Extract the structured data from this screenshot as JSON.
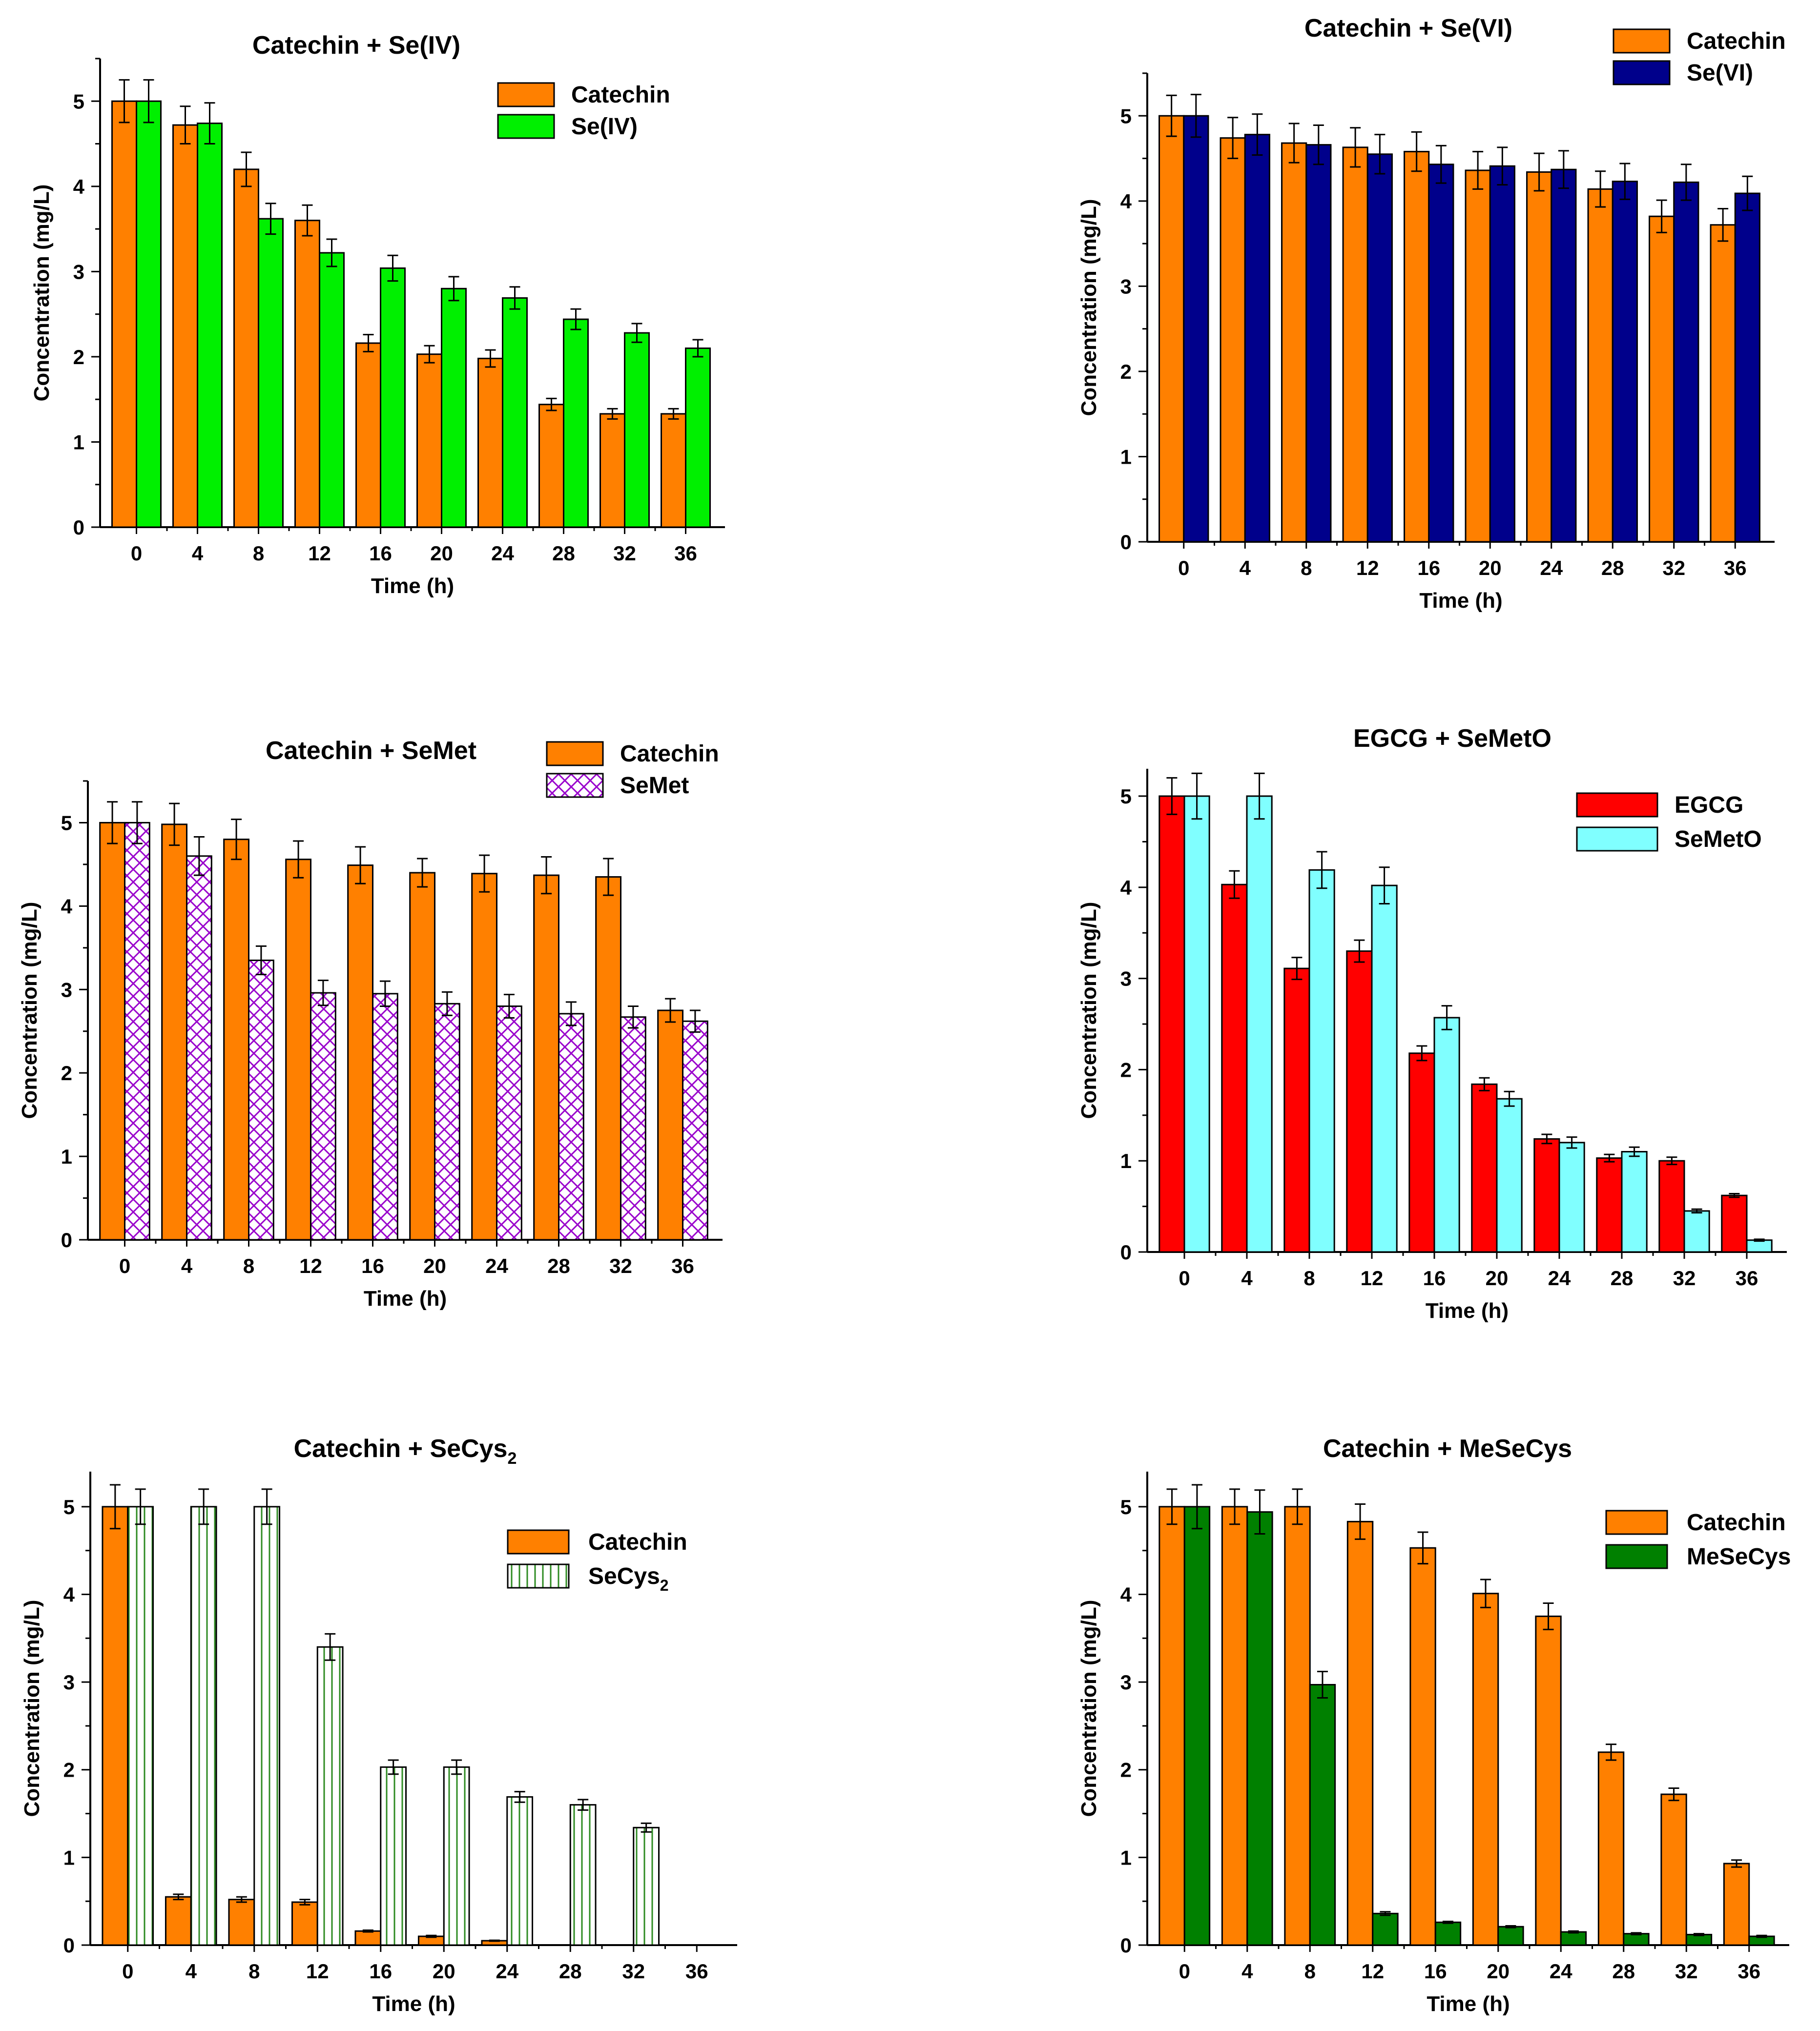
{
  "chart_data": [
    {
      "type": "bar",
      "title": "Catechin + Se(IV)",
      "xlabel": "Time (h)",
      "ylabel": "Concentration (mg/L)",
      "ylim": [
        0,
        5.5
      ],
      "yticks": [
        "0",
        "1",
        "2",
        "3",
        "4",
        "5"
      ],
      "categories": [
        "0",
        "4",
        "8",
        "12",
        "16",
        "20",
        "24",
        "28",
        "32",
        "36"
      ],
      "legend_position": "top-right",
      "series": [
        {
          "name": "Catechin",
          "color": "#FF8000",
          "pattern": "solid",
          "values": [
            5.0,
            4.72,
            4.2,
            3.6,
            2.16,
            2.03,
            1.98,
            1.44,
            1.33,
            1.33
          ],
          "errors": [
            0.25,
            0.22,
            0.2,
            0.18,
            0.1,
            0.1,
            0.1,
            0.07,
            0.06,
            0.06
          ]
        },
        {
          "name": "Se(IV)",
          "color": "#00F000",
          "pattern": "solid",
          "values": [
            5.0,
            4.74,
            3.62,
            3.22,
            3.04,
            2.8,
            2.69,
            2.44,
            2.28,
            2.1
          ],
          "errors": [
            0.25,
            0.24,
            0.18,
            0.16,
            0.15,
            0.14,
            0.13,
            0.12,
            0.11,
            0.1
          ]
        }
      ]
    },
    {
      "type": "bar",
      "title": "Catechin + Se(VI)",
      "xlabel": "Time (h)",
      "ylabel": "Concentration (mg/L)",
      "ylim": [
        0,
        5.5
      ],
      "yticks": [
        "0",
        "1",
        "2",
        "3",
        "4",
        "5"
      ],
      "categories": [
        "0",
        "4",
        "8",
        "12",
        "16",
        "20",
        "24",
        "28",
        "32",
        "36"
      ],
      "legend_position": "top-right",
      "series": [
        {
          "name": "Catechin",
          "color": "#FF8000",
          "pattern": "solid",
          "values": [
            5.0,
            4.74,
            4.68,
            4.63,
            4.58,
            4.36,
            4.34,
            4.14,
            3.82,
            3.72
          ],
          "errors": [
            0.24,
            0.24,
            0.23,
            0.23,
            0.23,
            0.22,
            0.22,
            0.21,
            0.19,
            0.19
          ]
        },
        {
          "name": "Se(VI)",
          "color": "#00008B",
          "pattern": "solid",
          "values": [
            5.0,
            4.78,
            4.66,
            4.55,
            4.43,
            4.41,
            4.37,
            4.23,
            4.22,
            4.09
          ],
          "errors": [
            0.25,
            0.24,
            0.23,
            0.23,
            0.22,
            0.22,
            0.22,
            0.21,
            0.21,
            0.2
          ]
        }
      ]
    },
    {
      "type": "bar",
      "title": "Catechin + SeMet",
      "xlabel": "Time (h)",
      "ylabel": "Concentration (mg/L)",
      "ylim": [
        0,
        5.5
      ],
      "yticks": [
        "0",
        "1",
        "2",
        "3",
        "4",
        "5"
      ],
      "categories": [
        "0",
        "4",
        "8",
        "12",
        "16",
        "20",
        "24",
        "28",
        "32",
        "36"
      ],
      "legend_position": "top-right",
      "series": [
        {
          "name": "Catechin",
          "color": "#FF8000",
          "pattern": "solid",
          "values": [
            5.0,
            4.98,
            4.8,
            4.56,
            4.49,
            4.4,
            4.39,
            4.37,
            4.35,
            2.75
          ],
          "errors": [
            0.25,
            0.25,
            0.24,
            0.22,
            0.22,
            0.17,
            0.22,
            0.22,
            0.22,
            0.14
          ]
        },
        {
          "name": "SeMet",
          "color": "#9900CC",
          "pattern": "crosshatch",
          "values": [
            5.0,
            4.6,
            3.35,
            2.96,
            2.95,
            2.83,
            2.8,
            2.71,
            2.67,
            2.62
          ],
          "errors": [
            0.25,
            0.23,
            0.17,
            0.15,
            0.15,
            0.14,
            0.14,
            0.14,
            0.13,
            0.13
          ]
        }
      ]
    },
    {
      "type": "bar",
      "title": "EGCG + SeMetO",
      "xlabel": "Time (h)",
      "ylabel": "Concentration (mg/L)",
      "ylim": [
        0,
        5.3
      ],
      "yticks": [
        "0",
        "1",
        "2",
        "3",
        "4",
        "5"
      ],
      "categories": [
        "0",
        "4",
        "8",
        "12",
        "16",
        "20",
        "24",
        "28",
        "32",
        "36"
      ],
      "legend_position": "top-right",
      "series": [
        {
          "name": "EGCG",
          "color": "#FF0000",
          "pattern": "solid",
          "values": [
            5.0,
            4.03,
            3.11,
            3.3,
            2.18,
            1.84,
            1.24,
            1.03,
            1.0,
            0.62
          ],
          "errors": [
            0.2,
            0.15,
            0.12,
            0.12,
            0.08,
            0.07,
            0.05,
            0.04,
            0.04,
            0.02
          ]
        },
        {
          "name": "SeMetO",
          "color": "#80FFFF",
          "pattern": "solid",
          "values": [
            5.0,
            5.0,
            4.19,
            4.02,
            2.57,
            1.68,
            1.2,
            1.1,
            0.45,
            0.13
          ],
          "errors": [
            0.25,
            0.25,
            0.2,
            0.2,
            0.13,
            0.08,
            0.06,
            0.05,
            0.02,
            0.01
          ]
        }
      ]
    },
    {
      "type": "bar",
      "title": "Catechin + SeCys",
      "title_subscript": "2",
      "xlabel": "Time (h)",
      "ylabel": "Concentration (mg/L)",
      "ylim": [
        0,
        5.4
      ],
      "yticks": [
        "0",
        "1",
        "2",
        "3",
        "4",
        "5"
      ],
      "categories": [
        "0",
        "4",
        "8",
        "12",
        "16",
        "20",
        "24",
        "28",
        "32",
        "36"
      ],
      "legend_position": "right",
      "series": [
        {
          "name": "Catechin",
          "color": "#FF8000",
          "pattern": "solid",
          "values": [
            5.0,
            0.55,
            0.52,
            0.49,
            0.16,
            0.1,
            0.05,
            0,
            0,
            0
          ],
          "errors": [
            0.25,
            0.03,
            0.03,
            0.03,
            0.01,
            0.01,
            0.005,
            0,
            0,
            0
          ]
        },
        {
          "name": "SeCys",
          "name_subscript": "2",
          "color": "#2E8B22",
          "pattern": "vertical-lines",
          "values": [
            5.0,
            5.0,
            5.0,
            3.4,
            2.03,
            2.03,
            1.69,
            1.6,
            1.34,
            0
          ],
          "errors": [
            0.2,
            0.2,
            0.2,
            0.15,
            0.08,
            0.08,
            0.06,
            0.06,
            0.05,
            0
          ]
        }
      ]
    },
    {
      "type": "bar",
      "title": "Catechin + MeSeCys",
      "xlabel": "Time (h)",
      "ylabel": "Concentration (mg/L)",
      "ylim": [
        0,
        5.4
      ],
      "yticks": [
        "0",
        "1",
        "2",
        "3",
        "4",
        "5"
      ],
      "categories": [
        "0",
        "4",
        "8",
        "12",
        "16",
        "20",
        "24",
        "28",
        "32",
        "36"
      ],
      "legend_position": "right",
      "series": [
        {
          "name": "Catechin",
          "color": "#FF8000",
          "pattern": "solid",
          "values": [
            5.0,
            5.0,
            5.0,
            4.83,
            4.53,
            4.01,
            3.75,
            2.2,
            1.72,
            0.93
          ],
          "errors": [
            0.2,
            0.2,
            0.2,
            0.2,
            0.18,
            0.16,
            0.15,
            0.09,
            0.07,
            0.04
          ]
        },
        {
          "name": "MeSeCys",
          "color": "#008000",
          "pattern": "solid",
          "values": [
            5.0,
            4.94,
            2.97,
            0.36,
            0.26,
            0.21,
            0.15,
            0.13,
            0.12,
            0.1
          ],
          "errors": [
            0.25,
            0.25,
            0.15,
            0.02,
            0.01,
            0.01,
            0.01,
            0.01,
            0.01,
            0.01
          ]
        }
      ]
    }
  ]
}
